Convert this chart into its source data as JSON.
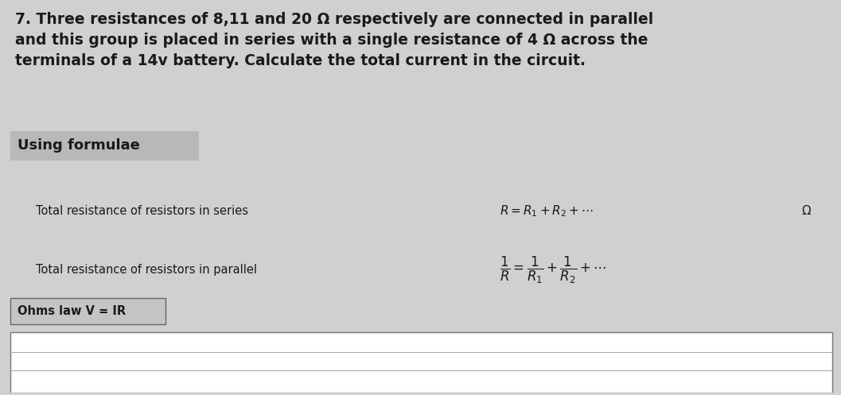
{
  "bg_color": "#d0d0d0",
  "white_color": "#ffffff",
  "text_color": "#1a1a1a",
  "title_text": "7. Three resistances of 8,11 and 20 Ω respectively are connected in parallel\nand this group is placed in series with a single resistance of 4 Ω across the\nterminals of a 14v battery. Calculate the total current in the circuit.",
  "section_label": "Using formulae",
  "row1_left": "Total resistance of resistors in series",
  "row1_formula": "$R = R_1 + R_2 + \\cdots$",
  "row1_unit": "Ω",
  "row2_left": "Total resistance of resistors in parallel",
  "row2_formula": "$\\dfrac{1}{R} = \\dfrac{1}{R_1} + \\dfrac{1}{R_2} + \\cdots$",
  "row3_left": "Ohms law V = IR",
  "figure_width": 10.57,
  "figure_height": 4.97
}
